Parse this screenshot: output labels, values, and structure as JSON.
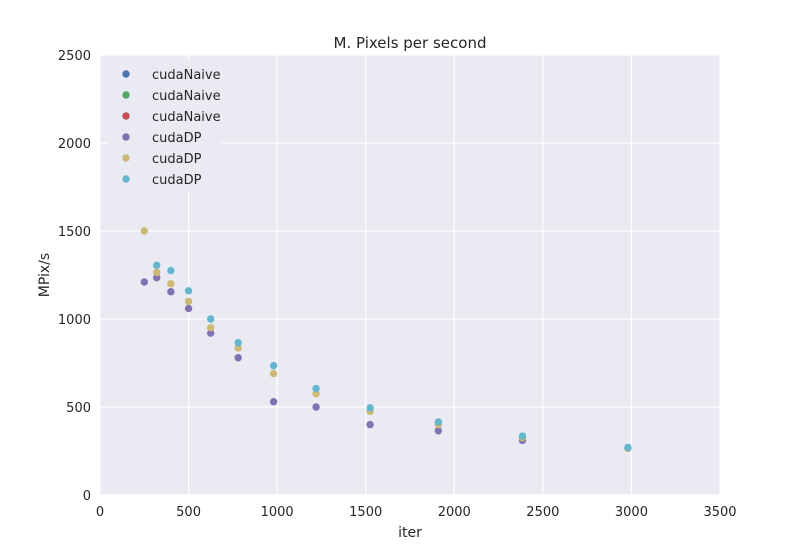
{
  "chart_data": {
    "type": "scatter",
    "title": "M. Pixels per second",
    "xlabel": "iter",
    "ylabel": "MPix/s",
    "xlim": [
      0,
      3500
    ],
    "ylim": [
      0,
      2500
    ],
    "xticks": [
      0,
      500,
      1000,
      1500,
      2000,
      2500,
      3000,
      3500
    ],
    "yticks": [
      0,
      500,
      1000,
      1500,
      2000,
      2500
    ],
    "grid": true,
    "legend_position": "top-left",
    "series": [
      {
        "name": "cudaNaive",
        "color": "#4c72b0",
        "x": [],
        "y": []
      },
      {
        "name": "cudaNaive",
        "color": "#55a868",
        "x": [],
        "y": []
      },
      {
        "name": "cudaNaive",
        "color": "#c44e52",
        "x": [],
        "y": []
      },
      {
        "name": "cudaDP",
        "color": "#8172b2",
        "x": [
          250,
          320,
          400,
          500,
          625,
          780,
          980,
          1220,
          1525,
          1910,
          2385,
          2980
        ],
        "y": [
          1210,
          1235,
          1155,
          1060,
          920,
          780,
          530,
          500,
          400,
          365,
          310,
          265
        ]
      },
      {
        "name": "cudaDP",
        "color": "#ccb974",
        "x": [
          250,
          320,
          400,
          500,
          625,
          780,
          980,
          1220,
          1525,
          1910,
          2385,
          2980
        ],
        "y": [
          1500,
          1265,
          1200,
          1100,
          950,
          835,
          690,
          575,
          475,
          400,
          325,
          265
        ]
      },
      {
        "name": "cudaDP",
        "color": "#64b5cd",
        "x": [
          320,
          400,
          500,
          625,
          780,
          980,
          1220,
          1525,
          1910,
          2385,
          2980
        ],
        "y": [
          1305,
          1275,
          1160,
          1000,
          865,
          735,
          605,
          495,
          415,
          335,
          270
        ]
      }
    ]
  }
}
